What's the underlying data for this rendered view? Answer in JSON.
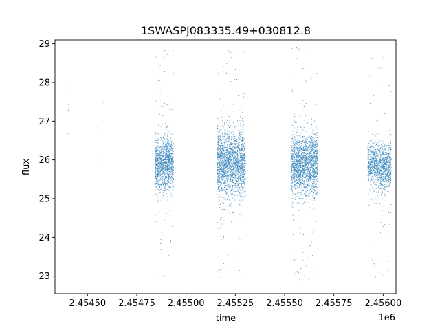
{
  "chart_data": {
    "type": "scatter",
    "title": "1SWASPJ083335.49+030812.8",
    "xlabel": "time",
    "ylabel": "flux",
    "x_offset_label": "1e6",
    "x_scale": 1000000,
    "xlim": [
      2454335,
      2456065
    ],
    "ylim": [
      22.55,
      29.1
    ],
    "xticks": [
      2454500,
      2454750,
      2455000,
      2455250,
      2455500,
      2455750,
      2456000
    ],
    "xtick_labels": [
      "2.45450",
      "2.45475",
      "2.45500",
      "2.45525",
      "2.45550",
      "2.45575",
      "2.45600"
    ],
    "yticks": [
      23,
      24,
      25,
      26,
      27,
      28,
      29
    ],
    "ytick_labels": [
      "23",
      "24",
      "25",
      "26",
      "27",
      "28",
      "29"
    ],
    "grid": false,
    "marker_color": "#1f77b4",
    "series": [
      {
        "clusters": [
          {
            "x_range": [
              2454400,
              2454402
            ],
            "y_center": 27.5,
            "y_spread": 0.5,
            "n": 10
          },
          {
            "x_range": [
              2454581,
              2454583
            ],
            "y_center": 26.9,
            "y_spread": 1.0,
            "n": 10
          },
          {
            "x_range": [
              2454840,
              2454935
            ],
            "y_center": 25.9,
            "y_spread": 0.55,
            "n": 1600
          },
          {
            "x_range": [
              2455155,
              2455300
            ],
            "y_center": 25.9,
            "y_spread": 0.7,
            "n": 2600
          },
          {
            "x_range": [
              2455530,
              2455665
            ],
            "y_center": 25.9,
            "y_spread": 0.65,
            "n": 2400
          },
          {
            "x_range": [
              2455920,
              2456040
            ],
            "y_center": 25.85,
            "y_spread": 0.5,
            "n": 1500
          }
        ]
      }
    ]
  }
}
